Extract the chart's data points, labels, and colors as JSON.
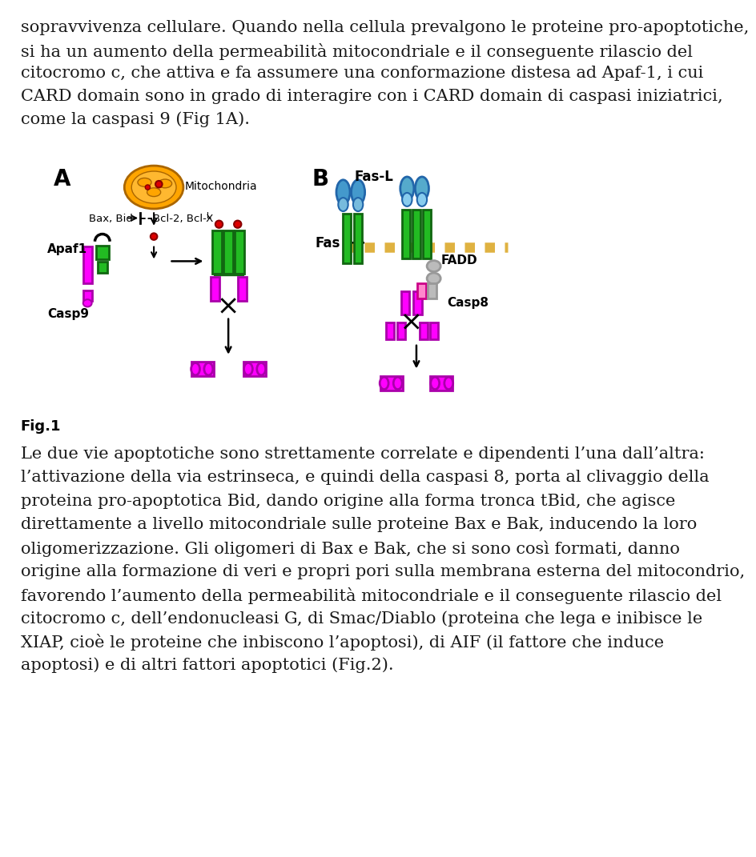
{
  "top_text_lines": [
    "sopravvivenza cellulare. Quando nella cellula prevalgono le proteine pro-apoptotiche,",
    "si ha un aumento della permeabilità mitocondriale e il conseguente rilascio del",
    "citocromo c, che attiva e fa assumere una conformazione distesa ad Apaf-1, i cui",
    "CARD domain sono in grado di interagire con i CARD domain di caspasi iniziatrici,",
    "come la caspasi 9 (Fig 1A)."
  ],
  "fig_label": "Fig.1",
  "bottom_text_lines": [
    "Le due vie apoptotiche sono strettamente correlate e dipendenti l’una dall’altra:",
    "l’attivazione della via estrinseca, e quindi della caspasi 8, porta al clivaggio della",
    "proteina pro-apoptotica Bid, dando origine alla forma tronca tBid, che agisce",
    "direttamente a livello mitocondriale sulle proteine Bax e Bak, inducendo la loro",
    "oligomerizzazione. Gli oligomeri di Bax e Bak, che si sono così formati, danno",
    "origine alla formazione di veri e propri pori sulla membrana esterna del mitocondrio,",
    "favorendo l’aumento della permeabilità mitocondriale e il conseguente rilascio del",
    "citocromo c, dell’endonucleasi G, di Smac/Diablo (proteina che lega e inibisce le",
    "XIAP, cioè le proteine che inbiscono l’apoptosi), di AIF (il fattore che induce",
    "apoptosi) e di altri fattori apoptotici (Fig.2)."
  ],
  "bg_color": "#ffffff",
  "text_color": "#1a1a1a",
  "magenta": "#FF00FF",
  "green": "#22BB22",
  "dark_green": "#116611",
  "orange": "#FFA500",
  "red": "#DD0000",
  "blue": "#4499CC",
  "gray": "#999999",
  "light_gray": "#BBBBBB",
  "pink": "#FF88CC"
}
